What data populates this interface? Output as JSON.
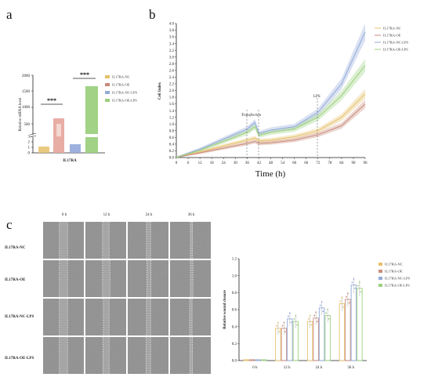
{
  "panels": {
    "a": "a",
    "b": "b",
    "c": "c"
  },
  "colors": {
    "nc": "#E6C16A",
    "oe": "#C98B7C",
    "nc_lps": "#93A9DA",
    "oe_lps": "#9CD07E"
  },
  "chart_data": [
    {
      "type": "bar",
      "panel": "a",
      "ylabel": "Relative mRNA level",
      "xlabel": "IL17RA",
      "y_ticks_lower": [
        "0",
        "1",
        "2",
        "3"
      ],
      "y_ticks_upper": [
        "500",
        "1000",
        "1500",
        "2000"
      ],
      "categories": [
        "IL17RA"
      ],
      "series": [
        {
          "name": "IL17RA-NC",
          "values": [
            1
          ]
        },
        {
          "name": "IL17RA-OE",
          "values": [
            680
          ]
        },
        {
          "name": "IL17RA-NC-LPS",
          "values": [
            1.3
          ]
        },
        {
          "name": "IL17RA-OE-LPS",
          "values": [
            1700
          ]
        }
      ],
      "significance": [
        "***",
        "***"
      ]
    },
    {
      "type": "line",
      "panel": "b",
      "ylabel": "Cell Index",
      "xlabel": "Time (h)",
      "x_ticks": [
        "0",
        "6",
        "12",
        "18",
        "24",
        "30",
        "36",
        "42",
        "48",
        "54",
        "60",
        "66",
        "72",
        "78",
        "84",
        "90",
        "96"
      ],
      "y_ticks": [
        "0.0",
        "0.2",
        "0.4",
        "0.6",
        "0.8",
        "1.0",
        "1.2",
        "1.4",
        "1.6",
        "1.8",
        "2.0",
        "2.2",
        "2.4",
        "2.6",
        "2.8",
        "3.0",
        "3.2",
        "3.4",
        "3.6",
        "3.8",
        "4.0"
      ],
      "xlim": [
        0,
        96
      ],
      "ylim": [
        0,
        4.0
      ],
      "annotations": [
        "Transfection",
        "LPS"
      ],
      "series": [
        {
          "name": "IL17RA-NC",
          "x": [
            0,
            12,
            24,
            36,
            40,
            42,
            48,
            60,
            72,
            84,
            96
          ],
          "y": [
            0,
            0.17,
            0.35,
            0.52,
            0.58,
            0.5,
            0.52,
            0.62,
            0.8,
            1.2,
            1.9
          ]
        },
        {
          "name": "IL17RA-OE",
          "x": [
            0,
            12,
            24,
            36,
            40,
            42,
            48,
            60,
            72,
            84,
            96
          ],
          "y": [
            0,
            0.14,
            0.28,
            0.42,
            0.48,
            0.42,
            0.44,
            0.52,
            0.68,
            0.95,
            1.6
          ]
        },
        {
          "name": "IL17RA-NC-LPS",
          "x": [
            0,
            12,
            24,
            36,
            40,
            42,
            48,
            60,
            72,
            84,
            96
          ],
          "y": [
            0,
            0.25,
            0.55,
            0.85,
            1.05,
            0.72,
            0.82,
            0.92,
            1.35,
            2.2,
            3.75
          ]
        },
        {
          "name": "IL17RA-OE-LPS",
          "x": [
            0,
            12,
            24,
            36,
            40,
            42,
            48,
            60,
            72,
            84,
            96
          ],
          "y": [
            0,
            0.22,
            0.48,
            0.75,
            0.92,
            0.66,
            0.75,
            0.85,
            1.2,
            1.85,
            2.75
          ]
        }
      ]
    },
    {
      "type": "bar",
      "panel": "c",
      "ylabel": "Relative wound closure",
      "categories": [
        "0 h",
        "12 h",
        "24 h",
        "36 h"
      ],
      "y_ticks": [
        "0.0",
        "0.2",
        "0.4",
        "0.6",
        "0.8",
        "1.0",
        "1.2"
      ],
      "ylim": [
        0,
        1.2
      ],
      "series": [
        {
          "name": "IL17RA-NC",
          "values": [
            0.01,
            0.38,
            0.46,
            0.67
          ]
        },
        {
          "name": "IL17RA-OE",
          "values": [
            0.01,
            0.38,
            0.5,
            0.72
          ]
        },
        {
          "name": "IL17RA-NC-LPS",
          "values": [
            0.01,
            0.49,
            0.62,
            0.89
          ]
        },
        {
          "name": "IL17RA-OE-LPS",
          "values": [
            0.01,
            0.46,
            0.53,
            0.85
          ]
        }
      ]
    }
  ],
  "wound": {
    "times": [
      "0 h",
      "12 h",
      "24 h",
      "36 h"
    ],
    "rows": [
      "IL17RA-NC",
      "IL17RA-OE",
      "IL17RA-NC-LPS",
      "IL17RA-OE-LPS"
    ]
  }
}
